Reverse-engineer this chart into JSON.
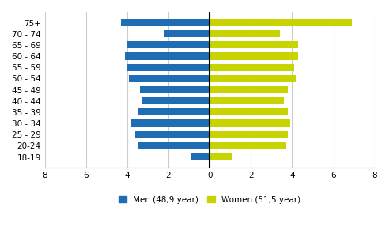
{
  "age_groups": [
    "75+",
    "70 - 74",
    "65 - 69",
    "60 - 64",
    "55 - 59",
    "50 - 54",
    "45 - 49",
    "40 - 44",
    "35 - 39",
    "30 - 34",
    "25 - 29",
    "20-24",
    "18-19"
  ],
  "men_values": [
    -4.3,
    -2.2,
    -4.0,
    -4.1,
    -4.0,
    -3.9,
    -3.4,
    -3.3,
    -3.5,
    -3.8,
    -3.6,
    -3.5,
    -0.9
  ],
  "women_values": [
    6.9,
    3.4,
    4.3,
    4.3,
    4.1,
    4.2,
    3.8,
    3.6,
    3.8,
    3.9,
    3.8,
    3.7,
    1.1
  ],
  "men_color": "#1f6eb5",
  "women_color": "#c8d400",
  "xlim": [
    -8,
    8
  ],
  "xticks": [
    -8,
    -6,
    -4,
    -2,
    0,
    2,
    4,
    6,
    8
  ],
  "xticklabels": [
    "8",
    "6",
    "4",
    "2",
    "0",
    "2",
    "4",
    "6",
    "8"
  ],
  "men_label": "Men (48,9 year)",
  "women_label": "Women (51,5 year)",
  "background_color": "#ffffff",
  "grid_color": "#cccccc",
  "bar_height": 0.65
}
